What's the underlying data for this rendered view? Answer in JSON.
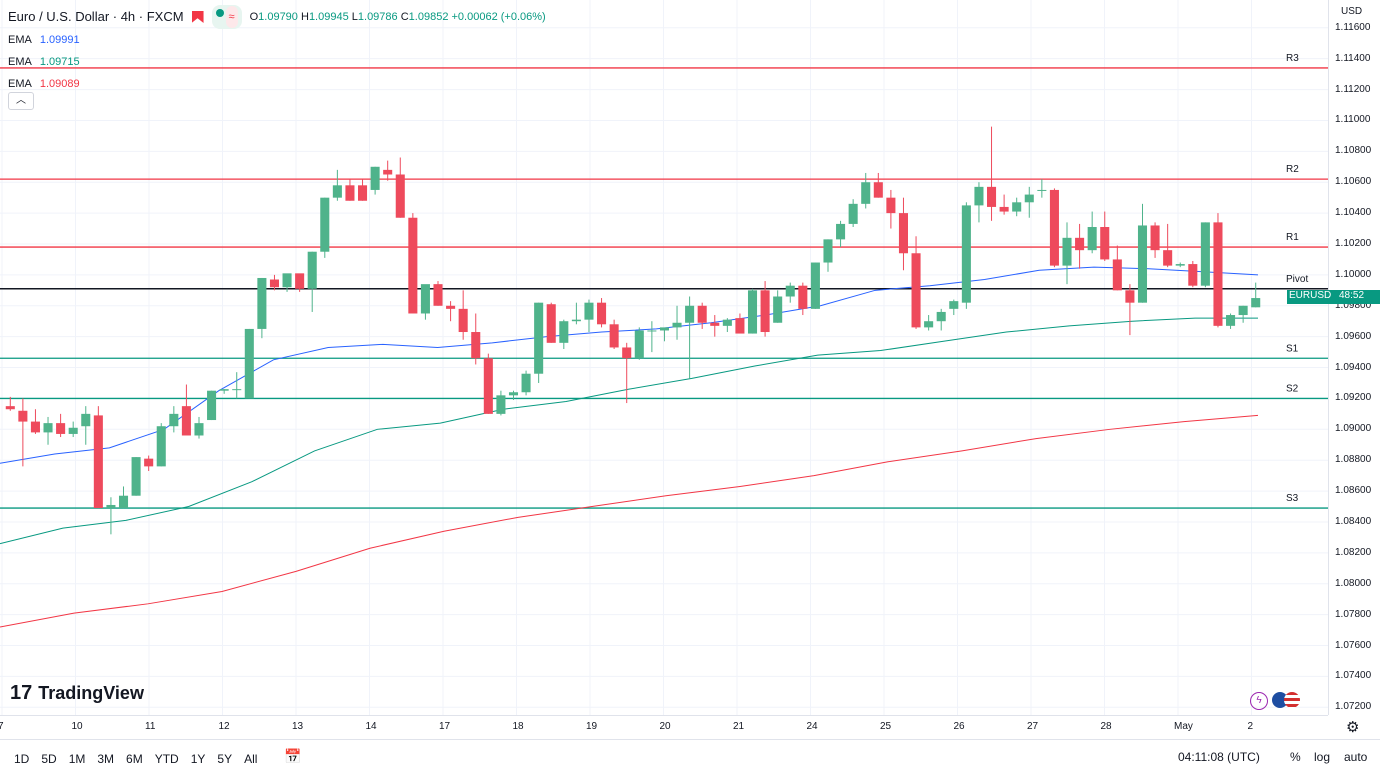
{
  "header": {
    "symbol_title": "Euro / U.S. Dollar · 4h · FXCM",
    "ohlc": [
      {
        "label": "O",
        "value": "1.09790"
      },
      {
        "label": "H",
        "value": "1.09945"
      },
      {
        "label": "L",
        "value": "1.09786"
      },
      {
        "label": "C",
        "value": "1.09852"
      }
    ],
    "change": "+0.00062 (+0.06%)"
  },
  "indicators": [
    {
      "name": "EMA",
      "value": "1.09991",
      "color": "#2962ff"
    },
    {
      "name": "EMA",
      "value": "1.09715",
      "color": "#089981"
    },
    {
      "name": "EMA",
      "value": "1.09089",
      "color": "#f23645"
    }
  ],
  "price_axis": {
    "currency": "USD",
    "ticks": [
      "1.11600",
      "1.11400",
      "1.11200",
      "1.11000",
      "1.10800",
      "1.10600",
      "1.10400",
      "1.10200",
      "1.10000",
      "1.09800",
      "1.09600",
      "1.09400",
      "1.09200",
      "1.09000",
      "1.08800",
      "1.08600",
      "1.08400",
      "1.08200",
      "1.08000",
      "1.07800",
      "1.07600",
      "1.07400",
      "1.07200"
    ],
    "current_label": "EURUSD",
    "current_countdown": "48:52"
  },
  "time_axis": {
    "ticks": [
      "7",
      "10",
      "11",
      "12",
      "13",
      "14",
      "17",
      "18",
      "19",
      "20",
      "21",
      "24",
      "25",
      "26",
      "27",
      "28",
      "May",
      "2"
    ]
  },
  "timeframes": [
    "1D",
    "5D",
    "1M",
    "3M",
    "6M",
    "YTD",
    "1Y",
    "5Y",
    "All"
  ],
  "status": {
    "clock": "04:11:08 (UTC)",
    "percent": "%",
    "log": "log",
    "auto": "auto"
  },
  "brand": {
    "logo_text": "TradingView"
  },
  "chart_data": {
    "type": "candlestick",
    "title": "Euro / U.S. Dollar · 4h · FXCM",
    "ylim": [
      1.0715,
      1.1178
    ],
    "levels": [
      {
        "name": "R3",
        "value": 1.1134,
        "color": "#f23645"
      },
      {
        "name": "R2",
        "value": 1.1062,
        "color": "#f23645"
      },
      {
        "name": "R1",
        "value": 1.1018,
        "color": "#f23645"
      },
      {
        "name": "Pivot",
        "value": 1.0991,
        "color": "#131722"
      },
      {
        "name": "S1",
        "value": 1.0946,
        "color": "#089981"
      },
      {
        "name": "S2",
        "value": 1.092,
        "color": "#089981"
      },
      {
        "name": "S3",
        "value": 1.0849,
        "color": "#089981"
      }
    ],
    "candles": [
      [
        1.0915,
        1.0921,
        1.0912,
        1.0913
      ],
      [
        1.0912,
        1.092,
        1.0876,
        1.0905
      ],
      [
        1.0905,
        1.0913,
        1.0897,
        1.0898
      ],
      [
        1.0898,
        1.0908,
        1.089,
        1.0904
      ],
      [
        1.0904,
        1.091,
        1.0895,
        1.0897
      ],
      [
        1.0897,
        1.0905,
        1.0895,
        1.0901
      ],
      [
        1.0902,
        1.0915,
        1.089,
        1.091
      ],
      [
        1.0909,
        1.0915,
        1.0849,
        1.0849
      ],
      [
        1.0849,
        1.0856,
        1.0832,
        1.0851
      ],
      [
        1.0849,
        1.0863,
        1.0849,
        1.0857
      ],
      [
        1.0857,
        1.0882,
        1.0857,
        1.0882
      ],
      [
        1.0881,
        1.0883,
        1.0873,
        1.0876
      ],
      [
        1.0876,
        1.0904,
        1.0876,
        1.0902
      ],
      [
        1.0902,
        1.0915,
        1.0898,
        1.091
      ],
      [
        1.0915,
        1.0929,
        1.0897,
        1.0896
      ],
      [
        1.0896,
        1.0908,
        1.0894,
        1.0904
      ],
      [
        1.0906,
        1.0925,
        1.0906,
        1.0925
      ],
      [
        1.0925,
        1.0926,
        1.0923,
        1.0926
      ],
      [
        1.0926,
        1.0937,
        1.092,
        1.0926
      ],
      [
        1.092,
        1.0965,
        1.092,
        1.0965
      ],
      [
        1.0965,
        1.0998,
        1.0959,
        1.0998
      ],
      [
        1.0997,
        1.1,
        1.099,
        1.0992
      ],
      [
        1.0992,
        1.1,
        1.0989,
        1.1001
      ],
      [
        1.1001,
        1.1,
        1.0989,
        1.0991
      ],
      [
        1.0991,
        1.1015,
        1.0976,
        1.1015
      ],
      [
        1.1015,
        1.105,
        1.1011,
        1.105
      ],
      [
        1.105,
        1.1068,
        1.1048,
        1.1058
      ],
      [
        1.1058,
        1.1062,
        1.1048,
        1.1048
      ],
      [
        1.1058,
        1.1062,
        1.1048,
        1.1048
      ],
      [
        1.1055,
        1.107,
        1.1052,
        1.107
      ],
      [
        1.1068,
        1.1074,
        1.1061,
        1.1065
      ],
      [
        1.1065,
        1.1076,
        1.1037,
        1.1037
      ],
      [
        1.1037,
        1.104,
        1.0975,
        1.0975
      ],
      [
        1.0975,
        1.0993,
        1.0971,
        1.0994
      ],
      [
        1.0994,
        1.0996,
        1.098,
        1.098
      ],
      [
        1.098,
        1.0983,
        1.097,
        1.0978
      ],
      [
        1.0978,
        1.099,
        1.0958,
        1.0963
      ],
      [
        1.0963,
        1.0975,
        1.0942,
        1.0946
      ],
      [
        1.0946,
        1.0949,
        1.091,
        1.091
      ],
      [
        1.091,
        1.0925,
        1.0909,
        1.0922
      ],
      [
        1.0922,
        1.0925,
        1.0919,
        1.0924
      ],
      [
        1.0924,
        1.0938,
        1.0922,
        1.0936
      ],
      [
        1.0936,
        1.0982,
        1.093,
        1.0982
      ],
      [
        1.0981,
        1.0982,
        1.0956,
        1.0956
      ],
      [
        1.0956,
        1.0971,
        1.0952,
        1.097
      ],
      [
        1.097,
        1.0982,
        1.0968,
        1.0971
      ],
      [
        1.0971,
        1.0984,
        1.0963,
        1.0982
      ],
      [
        1.0982,
        1.0985,
        1.0966,
        1.0968
      ],
      [
        1.0968,
        1.0971,
        1.0952,
        1.0953
      ],
      [
        1.0953,
        1.0956,
        1.0917,
        1.0946
      ],
      [
        1.0946,
        1.0966,
        1.0945,
        1.0964
      ],
      [
        1.0964,
        1.097,
        1.095,
        1.0964
      ],
      [
        1.0964,
        1.0965,
        1.0957,
        1.0966
      ],
      [
        1.0966,
        1.098,
        1.0958,
        1.0969
      ],
      [
        1.0969,
        1.0986,
        1.0933,
        1.098
      ],
      [
        1.098,
        1.0982,
        1.0965,
        1.0969
      ],
      [
        1.0969,
        1.0974,
        1.096,
        1.0967
      ],
      [
        1.0967,
        1.0972,
        1.0963,
        1.0971
      ],
      [
        1.0972,
        1.0975,
        1.0963,
        1.0962
      ],
      [
        1.0962,
        1.0991,
        1.0962,
        1.099
      ],
      [
        1.099,
        1.0996,
        1.096,
        1.0963
      ],
      [
        1.0969,
        1.099,
        1.0969,
        1.0986
      ],
      [
        1.0986,
        1.0995,
        1.0982,
        1.0993
      ],
      [
        1.0993,
        1.0995,
        1.0974,
        1.0978
      ],
      [
        1.0978,
        1.1008,
        1.0978,
        1.1008
      ],
      [
        1.1008,
        1.1023,
        1.1002,
        1.1023
      ],
      [
        1.1023,
        1.1035,
        1.1018,
        1.1033
      ],
      [
        1.1033,
        1.1049,
        1.1031,
        1.1046
      ],
      [
        1.1046,
        1.1066,
        1.1043,
        1.106
      ],
      [
        1.106,
        1.1066,
        1.105,
        1.105
      ],
      [
        1.105,
        1.1055,
        1.103,
        1.104
      ],
      [
        1.104,
        1.105,
        1.1003,
        1.1014
      ],
      [
        1.1014,
        1.1025,
        1.0965,
        1.0966
      ],
      [
        1.0966,
        1.0974,
        1.0964,
        1.097
      ],
      [
        1.097,
        1.0978,
        1.0964,
        1.0976
      ],
      [
        1.0978,
        1.0984,
        1.0974,
        1.0983
      ],
      [
        1.0982,
        1.1047,
        1.0978,
        1.1045
      ],
      [
        1.1045,
        1.106,
        1.1034,
        1.1057
      ],
      [
        1.1057,
        1.1096,
        1.1035,
        1.1044
      ],
      [
        1.1044,
        1.1052,
        1.1039,
        1.1041
      ],
      [
        1.1041,
        1.105,
        1.1038,
        1.1047
      ],
      [
        1.1047,
        1.1057,
        1.1037,
        1.1052
      ],
      [
        1.1055,
        1.1062,
        1.105,
        1.1055
      ],
      [
        1.1055,
        1.1056,
        1.1005,
        1.1006
      ],
      [
        1.1006,
        1.1034,
        1.0994,
        1.1024
      ],
      [
        1.1024,
        1.1033,
        1.1004,
        1.1016
      ],
      [
        1.1016,
        1.1041,
        1.1014,
        1.1031
      ],
      [
        1.1031,
        1.1041,
        1.1009,
        1.101
      ],
      [
        1.101,
        1.1019,
        1.099,
        1.099
      ],
      [
        1.099,
        1.0994,
        1.0961,
        1.0982
      ],
      [
        1.0982,
        1.1046,
        1.0982,
        1.1032
      ],
      [
        1.1032,
        1.1034,
        1.1011,
        1.1016
      ],
      [
        1.1016,
        1.1033,
        1.1005,
        1.1006
      ],
      [
        1.1006,
        1.1008,
        1.1005,
        1.1007
      ],
      [
        1.1007,
        1.1009,
        1.0992,
        1.0993
      ],
      [
        1.0993,
        1.1034,
        1.0992,
        1.1034
      ],
      [
        1.1034,
        1.104,
        1.0966,
        1.0967
      ],
      [
        1.0967,
        1.0975,
        1.0965,
        1.0974
      ],
      [
        1.0974,
        1.098,
        1.0969,
        1.098
      ],
      [
        1.0979,
        1.0995,
        1.0979,
        1.0985
      ]
    ],
    "ema_series": [
      {
        "color": "#2962ff",
        "values": [
          1.0878,
          1.0884,
          1.0888,
          1.09,
          1.0925,
          1.0945,
          1.0953,
          1.0955,
          1.0953,
          1.0956,
          1.096,
          1.0963,
          1.0965,
          1.0969,
          1.0974,
          1.098,
          1.099,
          1.0993,
          1.0997,
          1.1003,
          1.1005,
          1.1004,
          1.1002,
          1.1
        ]
      },
      {
        "color": "#089981",
        "values": [
          1.0826,
          1.0836,
          1.0841,
          1.085,
          1.0866,
          1.0886,
          1.09,
          1.0904,
          1.0913,
          1.0918,
          1.0926,
          1.0933,
          1.0941,
          1.0948,
          1.0951,
          1.0957,
          1.0963,
          1.0967,
          1.097,
          1.0972,
          1.0972
        ]
      },
      {
        "color": "#f23645",
        "values": [
          1.0772,
          1.0781,
          1.0787,
          1.0795,
          1.0808,
          1.0823,
          1.0834,
          1.0843,
          1.085,
          1.0857,
          1.0863,
          1.087,
          1.0879,
          1.0886,
          1.0894,
          1.09,
          1.0905,
          1.0909
        ]
      }
    ]
  }
}
